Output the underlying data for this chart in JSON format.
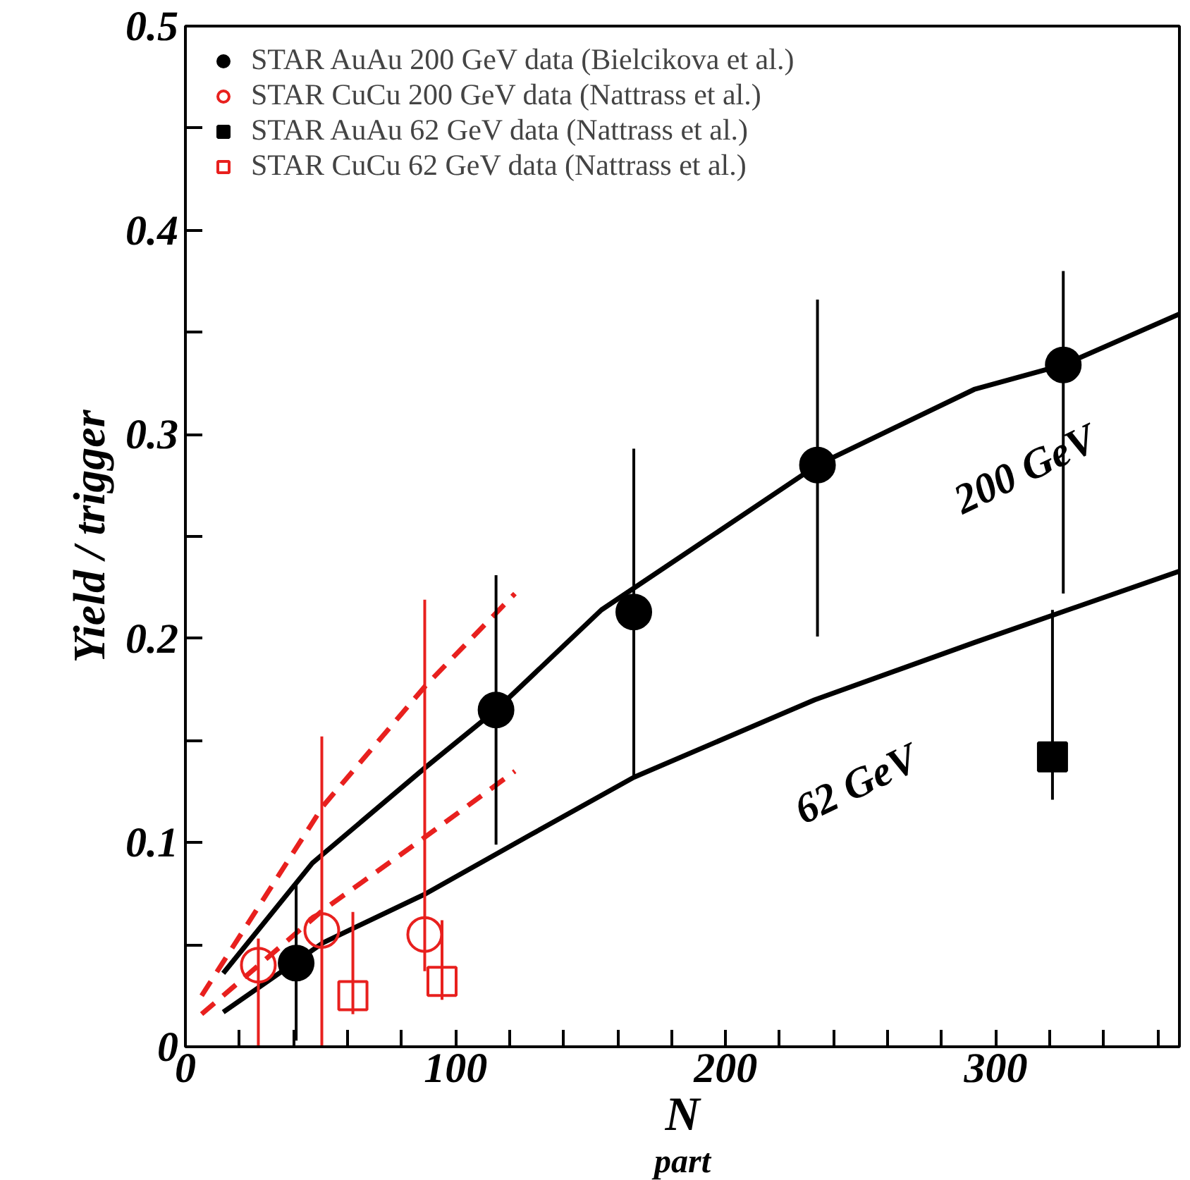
{
  "chart_data": {
    "type": "scatter",
    "xlabel": "N$_{part}$",
    "ylabel": "Yield / trigger",
    "xlim": [
      0,
      368
    ],
    "ylim": [
      0,
      0.5
    ],
    "xticks": [
      0,
      {
        "value": 20,
        "label": null
      },
      {
        "value": 40,
        "label": null
      },
      {
        "value": 60,
        "label": null
      },
      {
        "value": 80,
        "label": null
      },
      100,
      {
        "value": 120,
        "label": null
      },
      {
        "value": 140,
        "label": null
      },
      {
        "value": 160,
        "label": null
      },
      {
        "value": 180,
        "label": null
      },
      200,
      {
        "value": 220,
        "label": null
      },
      {
        "value": 240,
        "label": null
      },
      {
        "value": 260,
        "label": null
      },
      {
        "value": 280,
        "label": null
      },
      300,
      {
        "value": 320,
        "label": null
      },
      {
        "value": 340,
        "label": null
      },
      {
        "value": 360,
        "label": null
      }
    ],
    "yticks": [
      0,
      {
        "value": 0.05,
        "label": null
      },
      0.1,
      {
        "value": 0.15,
        "label": null
      },
      0.2,
      {
        "value": 0.25,
        "label": null
      },
      0.3,
      {
        "value": 0.35,
        "label": null
      },
      0.4,
      {
        "value": 0.45,
        "label": null
      },
      0.5
    ],
    "grid": false,
    "legend": "top left",
    "annotations": [
      "200 GeV",
      "62 GeV"
    ],
    "series": [
      {
        "type": "line",
        "color": "#000000",
        "line_style": "solid",
        "x": [
          14,
          47,
          89,
          115,
          154,
          234,
          292,
          325,
          368
        ],
        "values": [
          0.036,
          0.09,
          0.137,
          0.165,
          0.214,
          0.285,
          0.322,
          0.334,
          0.359
        ]
      },
      {
        "type": "line",
        "color": "#000000",
        "line_style": "solid",
        "x": [
          14,
          51,
          89,
          128,
          166,
          233,
          292,
          368
        ],
        "values": [
          0.017,
          0.051,
          0.075,
          0.104,
          0.132,
          0.17,
          0.198,
          0.233
        ]
      },
      {
        "type": "line",
        "color": "#e8201e",
        "line_style": "dashed",
        "x": [
          6,
          51,
          89,
          122
        ],
        "values": [
          0.025,
          0.118,
          0.177,
          0.222
        ]
      },
      {
        "type": "line",
        "color": "#e8201e",
        "line_style": "dashed",
        "x": [
          6,
          51,
          89,
          122
        ],
        "values": [
          0.016,
          0.067,
          0.103,
          0.135
        ]
      },
      {
        "name": "STAR AuAu 200 GeV data (Bielcikova et al.)",
        "marker": "circle",
        "color": "#000000",
        "x": [
          41,
          115,
          166,
          234,
          325
        ],
        "values": [
          0.041,
          0.165,
          0.213,
          0.285,
          0.334
        ],
        "errors": [
          [
            0.003,
            0.081
          ],
          [
            0.099,
            0.231
          ],
          [
            0.132,
            0.293
          ],
          [
            0.201,
            0.366
          ],
          [
            0.222,
            0.38
          ]
        ]
      },
      {
        "name": "STAR CuCu 200 GeV data (Nattrass et al.)",
        "marker": "circle",
        "color": "#e8201e",
        "x": [
          27,
          50.5,
          88.6
        ],
        "values": [
          0.04,
          0.057,
          0.055
        ],
        "errors": [
          [
            0,
            0.053
          ],
          [
            0,
            0.152
          ],
          [
            0.037,
            0.219
          ]
        ]
      },
      {
        "name": "STAR AuAu 62 GeV data (Nattrass et al.)",
        "marker": "square",
        "color": "#000000",
        "x": [
          321
        ],
        "values": [
          0.142
        ],
        "errors": [
          [
            0.121,
            0.214
          ]
        ]
      },
      {
        "name": "STAR CuCu 62 GeV data (Nattrass et al.)",
        "marker": "square",
        "color": "#e8201e",
        "x": [
          62,
          95
        ],
        "values": [
          0.025,
          0.032
        ],
        "errors": [
          [
            0.016,
            0.066
          ],
          [
            0.023,
            0.062
          ]
        ]
      }
    ]
  }
}
